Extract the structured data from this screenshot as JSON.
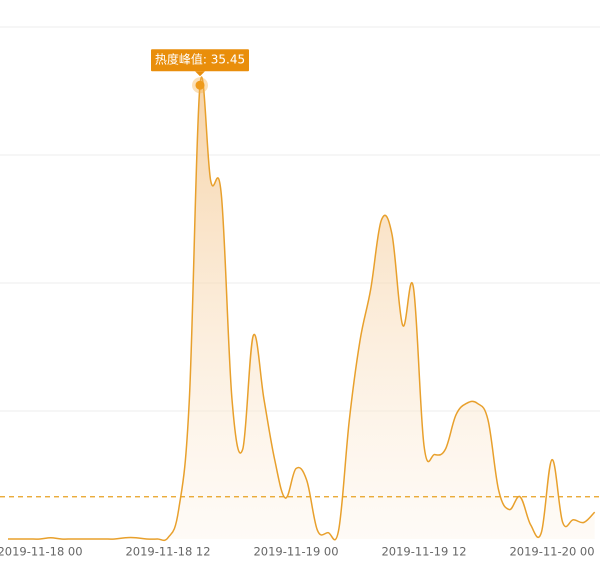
{
  "chart_data": {
    "type": "area",
    "x": [
      "2019-11-17 21",
      "2019-11-17 22",
      "2019-11-17 23",
      "2019-11-18 00",
      "2019-11-18 01",
      "2019-11-18 02",
      "2019-11-18 03",
      "2019-11-18 04",
      "2019-11-18 05",
      "2019-11-18 06",
      "2019-11-18 07",
      "2019-11-18 08",
      "2019-11-18 09",
      "2019-11-18 10",
      "2019-11-18 11",
      "2019-11-18 12",
      "2019-11-18 13",
      "2019-11-18 14",
      "2019-11-18 15",
      "2019-11-18 16",
      "2019-11-18 17",
      "2019-11-18 18",
      "2019-11-18 19",
      "2019-11-18 20",
      "2019-11-18 21",
      "2019-11-18 22",
      "2019-11-18 23",
      "2019-11-19 00",
      "2019-11-19 01",
      "2019-11-19 02",
      "2019-11-19 03",
      "2019-11-19 04",
      "2019-11-19 05",
      "2019-11-19 06",
      "2019-11-19 07",
      "2019-11-19 08",
      "2019-11-19 09",
      "2019-11-19 10",
      "2019-11-19 11",
      "2019-11-19 12",
      "2019-11-19 13",
      "2019-11-19 14",
      "2019-11-19 15",
      "2019-11-19 16",
      "2019-11-19 17",
      "2019-11-19 18",
      "2019-11-19 19",
      "2019-11-19 20",
      "2019-11-19 21",
      "2019-11-19 22",
      "2019-11-19 23",
      "2019-11-20 00",
      "2019-11-20 01",
      "2019-11-20 02",
      "2019-11-20 03",
      "2019-11-20 04"
    ],
    "values": [
      0,
      0,
      0,
      0,
      0.1,
      0,
      0,
      0,
      0,
      0,
      0,
      0.1,
      0.1,
      0,
      0,
      0.1,
      2.3,
      10.9,
      35.45,
      28,
      26.9,
      10.9,
      7,
      15.9,
      10.9,
      6.2,
      3.2,
      5.5,
      4.6,
      0.7,
      0.5,
      0.7,
      9.3,
      15.5,
      19.5,
      24.9,
      23.8,
      16.7,
      19.7,
      7.3,
      6.6,
      7,
      9.7,
      10.6,
      10.6,
      9.3,
      3.8,
      2.3,
      3.3,
      1.1,
      0.5,
      6.2,
      1.3,
      1.5,
      1.3,
      2.1
    ],
    "color": "#e8a02c",
    "ylim": [
      0,
      40
    ],
    "yticks": [
      0,
      10,
      20,
      30,
      40
    ],
    "grid": true,
    "average_line": 3.3,
    "peak_label": "热度峰值: 35.45"
  }
}
